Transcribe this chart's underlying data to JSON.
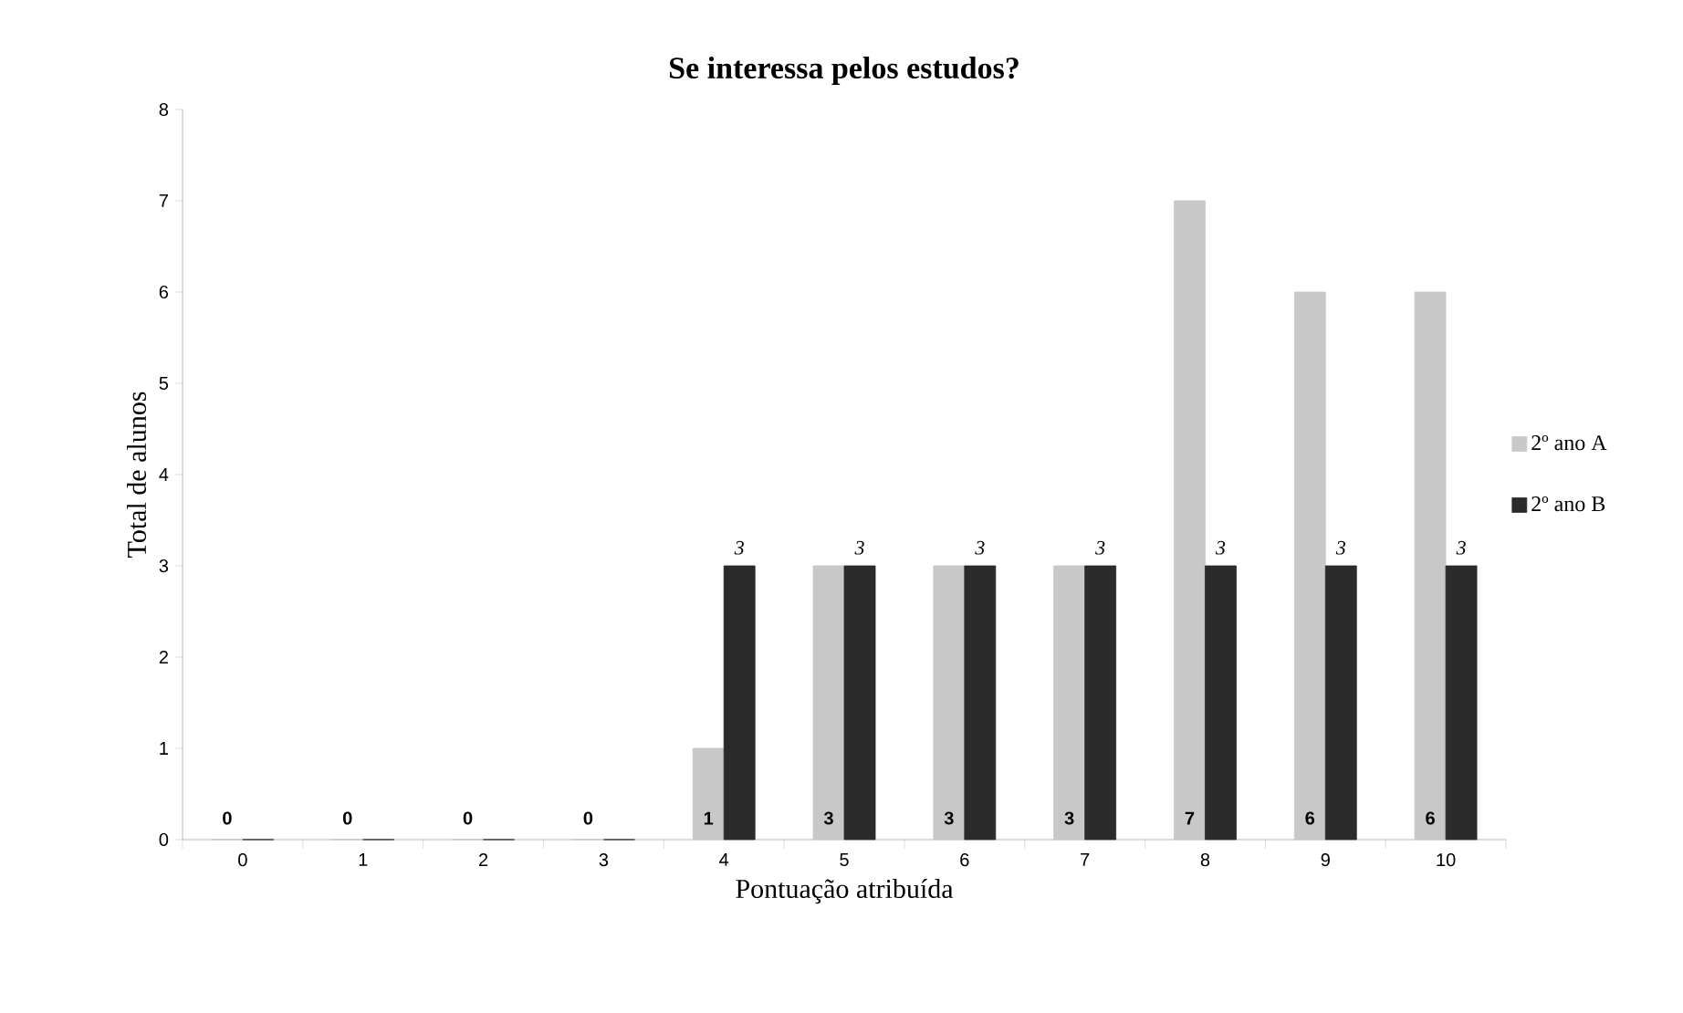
{
  "chart_data": {
    "type": "bar",
    "title": "Se interessa pelos estudos?",
    "xlabel": "Pontuação atribuída",
    "ylabel": "Total de alunos",
    "categories": [
      "0",
      "1",
      "2",
      "3",
      "4",
      "5",
      "6",
      "7",
      "8",
      "9",
      "10"
    ],
    "series": [
      {
        "name": "2º ano A",
        "color": "#c8c8c8",
        "values": [
          0,
          0,
          0,
          0,
          1,
          3,
          3,
          3,
          7,
          6,
          6
        ],
        "value_labels": [
          "0",
          "0",
          "0",
          "0",
          "1",
          "3",
          "3",
          "3",
          "7",
          "6",
          "6"
        ]
      },
      {
        "name": "2º ano B",
        "color": "#2b2b2b",
        "values": [
          0,
          0,
          0,
          0,
          3,
          3,
          3,
          3,
          3,
          3,
          3
        ],
        "value_labels": [
          null,
          null,
          null,
          null,
          "3",
          "3",
          "3",
          "3",
          "3",
          "3",
          "3"
        ]
      }
    ],
    "ylim": [
      0,
      8
    ],
    "yticks": [
      0,
      1,
      2,
      3,
      4,
      5,
      6,
      7,
      8
    ],
    "legend": "right"
  }
}
